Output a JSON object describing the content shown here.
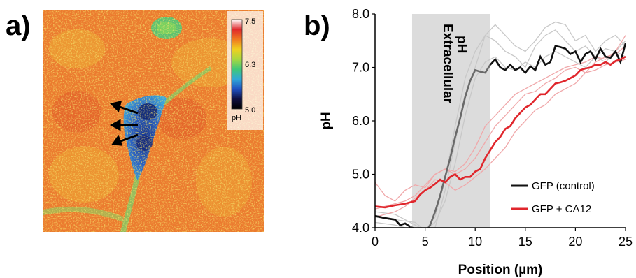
{
  "panels": {
    "a_label": "a)",
    "b_label": "b)"
  },
  "colorbar": {
    "ticks": [
      "7.5",
      "6.3",
      "5.0"
    ],
    "label": "pH",
    "stops": [
      "#ffffff",
      "#e0282c",
      "#f07a20",
      "#f0d020",
      "#a8d840",
      "#40c878",
      "#30a8d8",
      "#2050c0",
      "#101040",
      "#000000"
    ]
  },
  "colors": {
    "control": "#111111",
    "ca12": "#e0262c",
    "band": "#dcdcdc"
  },
  "chart_data": {
    "type": "line",
    "xlabel": "Position (µm)",
    "ylabel": "pH",
    "xlim": [
      0,
      25
    ],
    "ylim": [
      4.0,
      8.0
    ],
    "xticks": [
      "0",
      "5",
      "10",
      "15",
      "20",
      "25"
    ],
    "yticks": [
      "4.0",
      "5.0",
      "6.0",
      "7.0",
      "8.0"
    ],
    "grid": false,
    "legend_position": "bottom-right",
    "band": {
      "x_range": [
        3.7,
        11.5
      ],
      "label_line1": "Extracellular",
      "label_line2": "pH"
    },
    "series": [
      {
        "name": "GFP (control)",
        "color": "#111111",
        "x": [
          0,
          1,
          2,
          2.5,
          3,
          3.5,
          4,
          5,
          5.5,
          6,
          6.5,
          7,
          7.5,
          8,
          8.5,
          9,
          9.5,
          10,
          10.5,
          11,
          11.5,
          12,
          12.5,
          13,
          13.5,
          14,
          14.5,
          15,
          15.5,
          16,
          16.5,
          17,
          17.5,
          18,
          18.5,
          19,
          19.5,
          20,
          20.5,
          21,
          21.5,
          22,
          22.5,
          23,
          23.5,
          24,
          24.5,
          25
        ],
        "y": [
          4.22,
          4.18,
          4.15,
          4.05,
          4.08,
          4.02,
          3.98,
          3.9,
          4.05,
          4.3,
          4.6,
          4.95,
          5.3,
          5.7,
          6.05,
          6.45,
          6.75,
          6.95,
          6.92,
          6.9,
          7.05,
          7.15,
          7.0,
          6.95,
          7.05,
          6.95,
          7.0,
          6.9,
          7.02,
          6.95,
          7.2,
          7.05,
          7.1,
          7.4,
          7.38,
          7.35,
          7.25,
          7.3,
          7.1,
          7.25,
          7.3,
          7.15,
          7.35,
          7.2,
          7.18,
          7.3,
          7.1,
          7.45
        ],
        "bold_from": 11.5
      },
      {
        "name": "GFP + CA12",
        "color": "#e0262c",
        "x": [
          0,
          1,
          2,
          3,
          4,
          4.5,
          5,
          5.5,
          6,
          6.5,
          7,
          7.5,
          8,
          8.5,
          9,
          9.5,
          10,
          10.5,
          11,
          11.5,
          12,
          12.5,
          13,
          13.5,
          14,
          14.5,
          15,
          15.5,
          16,
          16.5,
          17,
          17.5,
          18,
          18.5,
          19,
          19.5,
          20,
          20.5,
          21,
          21.5,
          22,
          22.5,
          23,
          23.5,
          24,
          24.5,
          25
        ],
        "y": [
          4.4,
          4.38,
          4.42,
          4.45,
          4.5,
          4.62,
          4.7,
          4.75,
          4.82,
          4.9,
          4.85,
          4.95,
          5.0,
          4.9,
          4.95,
          4.95,
          5.05,
          5.1,
          5.3,
          5.45,
          5.6,
          5.7,
          5.85,
          5.9,
          6.05,
          6.15,
          6.25,
          6.3,
          6.4,
          6.5,
          6.5,
          6.6,
          6.7,
          6.72,
          6.75,
          6.8,
          6.85,
          6.95,
          6.98,
          7.0,
          7.05,
          7.05,
          7.1,
          7.05,
          7.12,
          7.15,
          7.2
        ]
      }
    ],
    "replicates": [
      {
        "series": "GFP (control)",
        "color": "#c8c8c8",
        "x": [
          0,
          2,
          4,
          5,
          6,
          7,
          8,
          9,
          10,
          11,
          12,
          13,
          14,
          15,
          16,
          17,
          18,
          19,
          20,
          21,
          22,
          23,
          24,
          25
        ],
        "y": [
          4.3,
          4.25,
          4.05,
          3.95,
          4.2,
          4.9,
          5.9,
          6.8,
          7.3,
          7.6,
          7.5,
          7.3,
          7.2,
          7.0,
          7.4,
          7.6,
          7.7,
          7.5,
          7.3,
          7.4,
          7.2,
          7.35,
          7.3,
          7.5
        ]
      },
      {
        "series": "GFP (control)",
        "color": "#c8c8c8",
        "x": [
          0,
          2,
          4,
          5,
          6,
          7,
          8,
          9,
          10,
          11,
          12,
          13,
          14,
          15,
          16,
          17,
          18,
          19,
          20,
          21,
          22,
          23,
          24,
          25
        ],
        "y": [
          4.1,
          4.05,
          3.95,
          3.9,
          4.0,
          4.7,
          5.6,
          6.5,
          7.0,
          7.6,
          7.8,
          7.6,
          7.4,
          7.3,
          7.5,
          7.75,
          7.85,
          7.8,
          7.5,
          7.6,
          7.3,
          7.5,
          7.6,
          7.4
        ]
      },
      {
        "series": "GFP (control)",
        "color": "#c8c8c8",
        "x": [
          0,
          2,
          4,
          5,
          6,
          7,
          8,
          9,
          10,
          11,
          12,
          13,
          14,
          15,
          16,
          17,
          18,
          19,
          20,
          21,
          22,
          23,
          24,
          25
        ],
        "y": [
          4.2,
          4.15,
          4.1,
          3.95,
          4.1,
          4.5,
          5.2,
          6.1,
          6.8,
          7.1,
          7.2,
          7.0,
          6.95,
          7.1,
          7.0,
          7.2,
          7.3,
          7.2,
          7.1,
          7.0,
          7.2,
          7.1,
          7.3,
          7.2
        ]
      },
      {
        "series": "GFP + CA12",
        "color": "#f0a8aa",
        "x": [
          0,
          1,
          2,
          3,
          4,
          5,
          6,
          7,
          8,
          9,
          10,
          11,
          12,
          13,
          14,
          15,
          16,
          17,
          18,
          19,
          20,
          21,
          22,
          23,
          24,
          25
        ],
        "y": [
          4.85,
          4.6,
          4.5,
          4.7,
          4.8,
          4.75,
          5.0,
          5.1,
          5.05,
          5.2,
          5.5,
          5.9,
          6.1,
          6.3,
          6.5,
          6.6,
          6.7,
          6.8,
          6.9,
          7.0,
          7.05,
          7.1,
          7.2,
          7.15,
          7.3,
          7.6
        ]
      },
      {
        "series": "GFP + CA12",
        "color": "#f0a8aa",
        "x": [
          0,
          1,
          2,
          3,
          4,
          5,
          6,
          7,
          8,
          9,
          10,
          11,
          12,
          13,
          14,
          15,
          16,
          17,
          18,
          19,
          20,
          21,
          22,
          23,
          24,
          25
        ],
        "y": [
          4.2,
          4.25,
          4.3,
          4.4,
          4.55,
          4.7,
          4.9,
          4.85,
          4.7,
          4.8,
          4.95,
          5.1,
          5.3,
          5.5,
          5.8,
          6.0,
          6.2,
          6.3,
          6.5,
          6.6,
          6.7,
          6.9,
          6.95,
          7.05,
          7.1,
          7.15
        ]
      },
      {
        "series": "GFP + CA12",
        "color": "#f0a8aa",
        "x": [
          0,
          1,
          2,
          3,
          4,
          5,
          6,
          7,
          8,
          9,
          10,
          11,
          12,
          13,
          14,
          15,
          16,
          17,
          18,
          19,
          20,
          21,
          22,
          23,
          24,
          25
        ],
        "y": [
          4.35,
          4.4,
          4.45,
          4.5,
          4.6,
          4.8,
          5.0,
          5.1,
          5.0,
          5.1,
          5.3,
          5.6,
          5.9,
          6.1,
          6.3,
          6.5,
          6.55,
          6.7,
          6.8,
          6.95,
          7.0,
          6.9,
          7.1,
          7.2,
          7.25,
          7.4
        ]
      }
    ]
  }
}
